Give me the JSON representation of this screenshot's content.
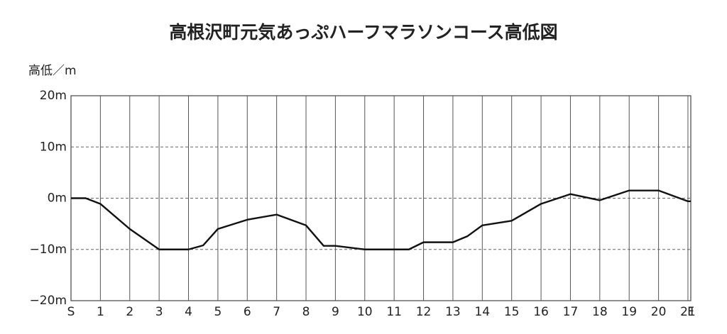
{
  "chart_data": {
    "type": "line",
    "title": "高根沢町元気あっぷハーフマラソンコース高低図",
    "y_label": "高低／m",
    "x": [
      0,
      0.5,
      1,
      2,
      3,
      4,
      4.5,
      5,
      6,
      7,
      8,
      8.6,
      9,
      10,
      11,
      11.5,
      12,
      13,
      13.5,
      14,
      15,
      16,
      17,
      18,
      19,
      20,
      21,
      21.0975
    ],
    "series": [
      {
        "name": "高低",
        "color": "#111111",
        "values": [
          0,
          0,
          -1.1,
          -6,
          -10,
          -10,
          -9.2,
          -6,
          -4.2,
          -3.2,
          -5.3,
          -9.3,
          -9.3,
          -10,
          -10,
          -10,
          -8.6,
          -8.6,
          -7.4,
          -5.3,
          -4.4,
          -1.1,
          0.8,
          -0.4,
          1.5,
          1.5,
          -0.6,
          -0.6
        ]
      }
    ],
    "xlim": [
      0,
      21.0975
    ],
    "xticks": [
      {
        "value": 0,
        "label": "S"
      },
      1,
      2,
      3,
      4,
      5,
      6,
      7,
      8,
      9,
      10,
      11,
      12,
      13,
      14,
      15,
      16,
      17,
      18,
      19,
      20,
      21,
      {
        "value": 21.0975,
        "label": "F"
      }
    ],
    "ylim": [
      -20,
      20
    ],
    "yticks": [
      {
        "value": -20,
        "label": "−20m"
      },
      {
        "value": -10,
        "label": "−10m"
      },
      {
        "value": 0,
        "label": "0m"
      },
      {
        "value": 10,
        "label": "10m"
      },
      {
        "value": 20,
        "label": "20m"
      }
    ],
    "grid": true
  }
}
